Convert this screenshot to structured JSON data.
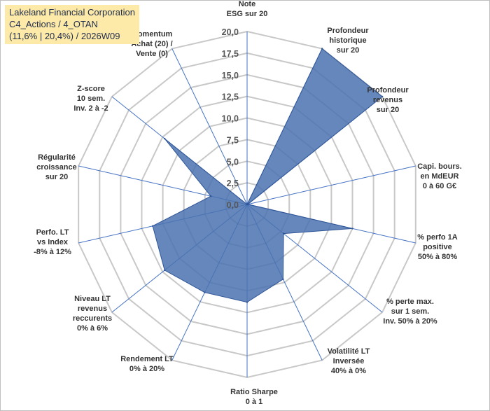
{
  "header": {
    "line1": "Lakeland Financial Corporation",
    "line2": "C4_Actions / 4_OTAN",
    "line3": "(11,6% | 20,4%) / 2026W09"
  },
  "chart_data": {
    "type": "radar",
    "rlim": [
      0,
      20
    ],
    "ticks": [
      "0,0",
      "2,5",
      "5,0",
      "7,5",
      "10,0",
      "12,5",
      "15,0",
      "17,5",
      "20,0"
    ],
    "grid": true,
    "colors": {
      "fill": "#4a72b0",
      "stroke": "#2f5597",
      "grid": "#c8c8c8",
      "spoke": "#4472c4"
    },
    "axes": [
      {
        "label": [
          "Note",
          "ESG sur 20"
        ],
        "value": 0
      },
      {
        "label": [
          "Profondeur",
          "historique",
          "sur 20"
        ],
        "value": 20
      },
      {
        "label": [
          "Profondeur",
          "revenus",
          "sur 20"
        ],
        "value": 20
      },
      {
        "label": [
          "Capi. bours.",
          "en MdEUR",
          "0 à 60 G€"
        ],
        "value": 0.1
      },
      {
        "label": [
          "% perfo 1A",
          "positive",
          "50% à 80%"
        ],
        "value": 12.5
      },
      {
        "label": [
          "% perte max.",
          "sur 1 sem.",
          "Inv. 50% à 20%"
        ],
        "value": 5.4
      },
      {
        "label": [
          "Volatilité LT",
          "Inversée",
          "40% à 0%"
        ],
        "value": 9.6
      },
      {
        "label": [
          "Ratio Sharpe",
          "0 à 1"
        ],
        "value": 11.3
      },
      {
        "label": [
          "Rendement LT",
          "0% à 20%"
        ],
        "value": 11.3
      },
      {
        "label": [
          "Niveau LT",
          "revenus",
          "reccurents",
          "0% à 6%"
        ],
        "value": 12.2
      },
      {
        "label": [
          "Perfo. LT",
          "vs Index",
          "-8% à 12%"
        ],
        "value": 11.2
      },
      {
        "label": [
          "Régularité",
          "croissance",
          "sur 20"
        ],
        "value": 4.3
      },
      {
        "label": [
          "Z-score",
          "10 sem.",
          "Inv. 2 à -2"
        ],
        "value": 12.2
      },
      {
        "label": [
          "Momentum",
          "Achat (20) /",
          "Vente (0)"
        ],
        "value": 0
      }
    ]
  }
}
